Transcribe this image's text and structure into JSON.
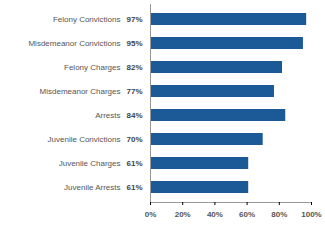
{
  "chart_data": {
    "type": "bar",
    "orientation": "horizontal",
    "categories": [
      "Felony Convictions",
      "Misdemeanor Convictions",
      "Felony Charges",
      "Misdemeanor Charges",
      "Arrests",
      "Juvenile Convictions",
      "Juvenile Charges",
      "Juvenile Arrests"
    ],
    "values": [
      97,
      95,
      82,
      77,
      84,
      70,
      61,
      61
    ],
    "value_labels": [
      "97%",
      "95%",
      "82%",
      "77%",
      "84%",
      "70%",
      "61%",
      "61%"
    ],
    "data_labels": true,
    "color": "#1b5a97",
    "xlim": [
      0,
      100
    ],
    "xticks": [
      {
        "value": 0,
        "label": "0%"
      },
      {
        "value": 20,
        "label": "20%"
      },
      {
        "value": 40,
        "label": "40%"
      },
      {
        "value": 60,
        "label": "60%"
      },
      {
        "value": 80,
        "label": "80%"
      },
      {
        "value": 100,
        "label": "100%"
      }
    ],
    "grid": false
  }
}
